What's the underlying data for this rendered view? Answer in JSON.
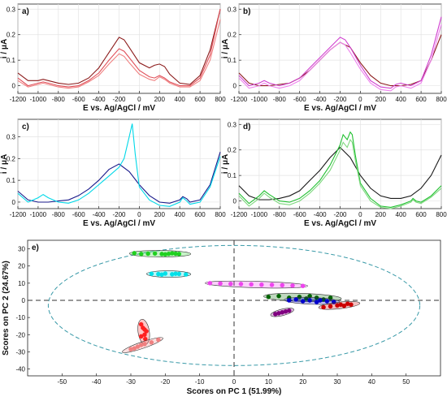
{
  "chart_data": [
    {
      "panel": "a)",
      "type": "line",
      "xlabel": "E vs. Ag/AgCl / mV",
      "ylabel": "i / μA",
      "xlim": [
        -1200,
        800
      ],
      "ylim": [
        -0.03,
        0.32
      ],
      "xticks": [
        "-1200",
        "-1000",
        "-800",
        "-600",
        "-400",
        "-200",
        "0",
        "200",
        "400",
        "600",
        "800"
      ],
      "yticks": [
        "0",
        "0.1",
        "0.2",
        "0.3"
      ],
      "grid": true,
      "series": [
        {
          "color": "#8b1a1a",
          "x": [
            -1200,
            -1100,
            -1000,
            -950,
            -900,
            -800,
            -700,
            -600,
            -500,
            -400,
            -300,
            -200,
            -150,
            -100,
            0,
            100,
            150,
            200,
            250,
            300,
            400,
            500,
            600,
            700,
            800
          ],
          "y": [
            0.05,
            0.02,
            0.02,
            0.025,
            0.02,
            0.01,
            0.005,
            0.01,
            0.03,
            0.07,
            0.13,
            0.19,
            0.18,
            0.15,
            0.09,
            0.07,
            0.08,
            0.085,
            0.075,
            0.045,
            0.01,
            0.005,
            0.04,
            0.14,
            0.3
          ]
        },
        {
          "color": "#e0505a",
          "x": [
            -1200,
            -1100,
            -1000,
            -950,
            -900,
            -800,
            -700,
            -600,
            -500,
            -400,
            -300,
            -200,
            -150,
            -100,
            0,
            100,
            150,
            200,
            250,
            300,
            400,
            500,
            600,
            700,
            800
          ],
          "y": [
            0.03,
            0.0,
            0.01,
            0.015,
            0.01,
            0.0,
            -0.005,
            0.0,
            0.02,
            0.05,
            0.1,
            0.145,
            0.135,
            0.11,
            0.06,
            0.035,
            0.03,
            0.04,
            0.03,
            0.015,
            0.0,
            0.0,
            0.03,
            0.12,
            0.3
          ]
        },
        {
          "color": "#f08080",
          "x": [
            -1200,
            -1100,
            -1000,
            -950,
            -900,
            -800,
            -700,
            -600,
            -500,
            -400,
            -300,
            -200,
            -150,
            -100,
            0,
            100,
            150,
            200,
            250,
            300,
            400,
            500,
            600,
            700,
            800
          ],
          "y": [
            0.02,
            -0.005,
            0.005,
            0.01,
            0.005,
            -0.005,
            -0.01,
            -0.005,
            0.015,
            0.04,
            0.085,
            0.125,
            0.115,
            0.09,
            0.045,
            0.025,
            0.02,
            0.035,
            0.025,
            0.01,
            -0.005,
            -0.005,
            0.02,
            0.1,
            0.26
          ]
        }
      ]
    },
    {
      "panel": "b)",
      "type": "line",
      "xlabel": "E vs. Ag/AgCl / mV",
      "ylabel": "i / μA",
      "xlim": [
        -1200,
        800
      ],
      "ylim": [
        -0.03,
        0.32
      ],
      "xticks": [
        "-1200",
        "-1000",
        "-800",
        "-600",
        "-400",
        "-200",
        "0",
        "200",
        "400",
        "600",
        "800"
      ],
      "yticks": [
        "0",
        "0.1",
        "0.2",
        "0.3"
      ],
      "grid": true,
      "series": [
        {
          "color": "#8b1a1a",
          "x": [
            -1200,
            -1100,
            -1000,
            -900,
            -800,
            -700,
            -600,
            -500,
            -400,
            -300,
            -200,
            -100,
            0,
            100,
            200,
            300,
            400,
            500,
            600,
            700,
            800
          ],
          "y": [
            0.05,
            0.01,
            0.0,
            0.0,
            0.005,
            0.01,
            0.03,
            0.06,
            0.1,
            0.14,
            0.17,
            0.15,
            0.09,
            0.04,
            0.01,
            0.0,
            0.0,
            0.005,
            0.02,
            0.1,
            0.2
          ]
        },
        {
          "color": "#d040d0",
          "x": [
            -1200,
            -1100,
            -1000,
            -950,
            -900,
            -800,
            -700,
            -600,
            -500,
            -400,
            -300,
            -200,
            -150,
            -100,
            0,
            100,
            200,
            300,
            350,
            400,
            500,
            600,
            700,
            800
          ],
          "y": [
            0.04,
            0.0,
            0.01,
            0.02,
            0.01,
            0.0,
            0.01,
            0.03,
            0.07,
            0.11,
            0.15,
            0.19,
            0.18,
            0.15,
            0.08,
            0.02,
            -0.005,
            -0.01,
            0.005,
            0.01,
            0.0,
            0.02,
            0.12,
            0.27
          ]
        },
        {
          "color": "#ee82ee",
          "x": [
            -1200,
            -1100,
            -1000,
            -950,
            -900,
            -800,
            -700,
            -600,
            -500,
            -400,
            -300,
            -200,
            -150,
            -100,
            0,
            100,
            200,
            300,
            350,
            400,
            500,
            600,
            700,
            800
          ],
          "y": [
            0.03,
            -0.01,
            0.0,
            0.01,
            0.0,
            -0.01,
            0.0,
            0.02,
            0.06,
            0.1,
            0.14,
            0.17,
            0.16,
            0.13,
            0.065,
            0.01,
            -0.015,
            -0.02,
            -0.005,
            0.0,
            -0.01,
            0.01,
            0.1,
            0.24
          ]
        }
      ]
    },
    {
      "panel": "c)",
      "type": "line",
      "xlabel": "E vs. Ag/AgCl / mV",
      "ylabel": "i / μA",
      "xlim": [
        -1200,
        800
      ],
      "ylim": [
        -0.03,
        0.38
      ],
      "xticks": [
        "-1200",
        "-1000",
        "-800",
        "-600",
        "-400",
        "-200",
        "0",
        "200",
        "400",
        "600",
        "800"
      ],
      "yticks": [
        "0",
        "0.1",
        "0.2",
        "0.3"
      ],
      "grid": true,
      "series": [
        {
          "color": "#1a1a8b",
          "x": [
            -1200,
            -1100,
            -1000,
            -900,
            -800,
            -700,
            -600,
            -500,
            -400,
            -300,
            -200,
            -100,
            0,
            100,
            200,
            300,
            400,
            430,
            470,
            500,
            600,
            700,
            800
          ],
          "y": [
            0.05,
            0.01,
            0.0,
            0.0,
            0.005,
            0.01,
            0.03,
            0.06,
            0.1,
            0.15,
            0.175,
            0.14,
            0.08,
            0.03,
            0.0,
            -0.005,
            0.01,
            0.025,
            0.015,
            0.0,
            0.01,
            0.08,
            0.23
          ]
        },
        {
          "color": "#00d8e8",
          "x": [
            -1200,
            -1100,
            -1000,
            -950,
            -900,
            -800,
            -700,
            -600,
            -500,
            -400,
            -300,
            -200,
            -150,
            -100,
            -70,
            -40,
            0,
            100,
            200,
            300,
            400,
            430,
            470,
            500,
            600,
            700,
            800
          ],
          "y": [
            0.04,
            0.0,
            0.02,
            0.035,
            0.02,
            0.0,
            -0.005,
            0.01,
            0.04,
            0.08,
            0.12,
            0.16,
            0.2,
            0.3,
            0.36,
            0.22,
            0.07,
            0.01,
            -0.015,
            -0.02,
            0.0,
            0.02,
            0.005,
            -0.01,
            0.0,
            0.07,
            0.21
          ]
        }
      ]
    },
    {
      "panel": "d)",
      "type": "line",
      "xlabel": "E vs. Ag/AgCl / mV",
      "ylabel": "i / μA",
      "xlim": [
        -1200,
        800
      ],
      "ylim": [
        -0.03,
        0.32
      ],
      "xticks": [
        "-1200",
        "-1000",
        "-800",
        "-600",
        "-400",
        "-200",
        "0",
        "200",
        "400",
        "600",
        "800"
      ],
      "yticks": [
        "0",
        "0.1",
        "0.2",
        "0.3"
      ],
      "grid": true,
      "series": [
        {
          "color": "#1a1a1a",
          "x": [
            -1200,
            -1100,
            -1000,
            -900,
            -800,
            -700,
            -600,
            -500,
            -400,
            -300,
            -200,
            -100,
            0,
            100,
            200,
            300,
            400,
            500,
            600,
            700,
            800
          ],
          "y": [
            0.06,
            0.02,
            0.005,
            0.005,
            0.01,
            0.02,
            0.04,
            0.08,
            0.12,
            0.17,
            0.21,
            0.17,
            0.1,
            0.05,
            0.02,
            0.01,
            0.01,
            0.02,
            0.05,
            0.1,
            0.18
          ]
        },
        {
          "color": "#20c030",
          "x": [
            -1200,
            -1100,
            -1000,
            -950,
            -900,
            -800,
            -700,
            -600,
            -500,
            -400,
            -300,
            -200,
            -170,
            -130,
            -100,
            -80,
            -50,
            0,
            100,
            200,
            300,
            400,
            500,
            520,
            550,
            600,
            700,
            800
          ],
          "y": [
            0.03,
            -0.01,
            0.02,
            0.04,
            0.025,
            0.0,
            -0.005,
            0.01,
            0.04,
            0.08,
            0.14,
            0.22,
            0.26,
            0.24,
            0.27,
            0.26,
            0.18,
            0.07,
            0.01,
            -0.02,
            -0.025,
            -0.015,
            0.0,
            0.01,
            0.0,
            -0.005,
            0.02,
            0.06
          ]
        },
        {
          "color": "#7ed87e",
          "x": [
            -1200,
            -1100,
            -1000,
            -950,
            -900,
            -800,
            -700,
            -600,
            -500,
            -400,
            -300,
            -200,
            -170,
            -130,
            -100,
            -80,
            -50,
            0,
            100,
            200,
            300,
            400,
            500,
            520,
            550,
            600,
            700,
            800
          ],
          "y": [
            0.02,
            -0.02,
            0.01,
            0.03,
            0.015,
            -0.01,
            -0.015,
            0.0,
            0.03,
            0.07,
            0.12,
            0.2,
            0.23,
            0.21,
            0.24,
            0.23,
            0.16,
            0.06,
            0.0,
            -0.025,
            -0.03,
            -0.02,
            -0.005,
            0.005,
            -0.005,
            -0.01,
            0.015,
            0.05
          ]
        }
      ]
    },
    {
      "panel": "e)",
      "type": "scatter",
      "xlabel": "Scores on PC 1 (51.99%)",
      "ylabel": "Scores on PC 2 (24.67%)",
      "xlim": [
        -60,
        60
      ],
      "ylim": [
        -44,
        35
      ],
      "xticks": [
        "-50",
        "-40",
        "-30",
        "-20",
        "-10",
        "0",
        "10",
        "20",
        "30",
        "40",
        "50"
      ],
      "yticks": [
        "-40",
        "-30",
        "-20",
        "-10",
        "0",
        "10",
        "20",
        "30"
      ],
      "grid": false,
      "groups": [
        {
          "color": "#20d020",
          "x": [
            -29,
            -27,
            -25,
            -23,
            -21,
            -19,
            -18,
            -17,
            -16,
            -20
          ],
          "y": [
            27.5,
            27,
            27.2,
            27.3,
            27,
            27.1,
            27.4,
            27.2,
            27,
            26.8
          ]
        },
        {
          "color": "#00e0e8",
          "x": [
            -24,
            -22,
            -20,
            -18,
            -16,
            -14,
            -21,
            -17
          ],
          "y": [
            15.5,
            15.3,
            15.6,
            15.2,
            15.4,
            15.1,
            15,
            15.5
          ]
        },
        {
          "color": "#ee44ee",
          "x": [
            -7,
            -4,
            -1,
            2,
            5,
            8,
            11,
            14,
            17,
            20
          ],
          "y": [
            10,
            9.8,
            9.6,
            9.5,
            9.3,
            9.1,
            9,
            8.8,
            8.6,
            8.4
          ]
        },
        {
          "color": "#006400",
          "x": [
            10,
            13,
            16,
            19,
            21,
            22,
            24,
            26,
            28
          ],
          "y": [
            2,
            2.5,
            1.5,
            2,
            1,
            2.5,
            1.5,
            0.5,
            1.5
          ]
        },
        {
          "color": "#0000cc",
          "x": [
            16,
            18,
            20,
            22,
            24,
            25,
            27,
            29
          ],
          "y": [
            0,
            0.5,
            -0.5,
            0,
            -1,
            0,
            -0.5,
            -1
          ]
        },
        {
          "color": "#cc0000",
          "x": [
            26,
            28,
            30,
            31,
            32,
            33,
            34
          ],
          "y": [
            -4,
            -3.5,
            -3,
            -2.5,
            -3.2,
            -2,
            -2.5
          ]
        },
        {
          "color": "#800080",
          "x": [
            12,
            13,
            14,
            15,
            16
          ],
          "y": [
            -8,
            -7.5,
            -7,
            -6.5,
            -6
          ]
        },
        {
          "color": "#ff2020",
          "x": [
            -27,
            -26.5,
            -26,
            -25.5,
            -26,
            -27,
            -25.8
          ],
          "y": [
            -14,
            -16,
            -17,
            -18,
            -20,
            -21,
            -22.5
          ]
        },
        {
          "color": "#f08080",
          "x": [
            -30,
            -28,
            -26,
            -24,
            -22,
            -29,
            -27
          ],
          "y": [
            -28.5,
            -27,
            -25.5,
            -24.5,
            -23,
            -28,
            -26
          ]
        }
      ]
    }
  ]
}
